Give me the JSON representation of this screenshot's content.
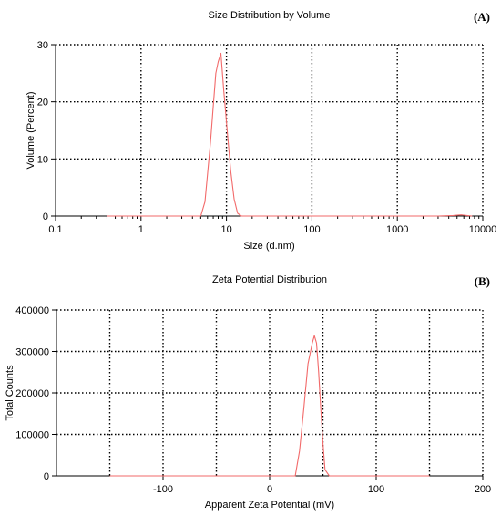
{
  "chart_data": [
    {
      "type": "line",
      "title": "Size Distribution by Volume",
      "panel_label": "(A)",
      "xlabel": "Size (d.nm)",
      "ylabel": "Volume (Percent)",
      "xscale": "log",
      "xlim": [
        0.1,
        10000
      ],
      "ylim": [
        0,
        30
      ],
      "xticks": [
        0.1,
        1,
        10,
        100,
        1000,
        10000
      ],
      "xtick_labels": [
        "0.1",
        "1",
        "10",
        "100",
        "1000",
        "10000"
      ],
      "yticks": [
        0,
        10,
        20,
        30
      ],
      "ytick_labels": [
        "0",
        "10",
        "20",
        "30"
      ],
      "grid": "dotted",
      "line_color": "#f26a6a",
      "series": [
        {
          "x": [
            0.4,
            1,
            2,
            4,
            5,
            5.6,
            6.5,
            7.5,
            8.0,
            8.6,
            9.3,
            10.2,
            11.2,
            12.3,
            13.5,
            15,
            20,
            50,
            200,
            1000,
            3000,
            4500,
            5600,
            6500,
            7500
          ],
          "values": [
            0,
            0,
            0,
            0,
            0,
            2.5,
            13,
            25,
            27,
            28.5,
            22,
            15,
            8,
            3,
            0.5,
            0,
            0,
            0,
            0,
            0,
            0,
            0.1,
            0.2,
            0.1,
            0
          ]
        }
      ]
    },
    {
      "type": "line",
      "title": "Zeta Potential Distribution",
      "panel_label": "(B)",
      "xlabel": "Apparent Zeta Potential (mV)",
      "ylabel": "Total Counts",
      "xlim": [
        -200,
        200
      ],
      "ylim": [
        0,
        400000
      ],
      "xticks": [
        -100,
        0,
        100,
        200
      ],
      "xtick_labels": [
        "-100",
        "0",
        "100",
        "200"
      ],
      "xgrid": [
        -150,
        -100,
        -50,
        0,
        50,
        100,
        150,
        200
      ],
      "yticks": [
        0,
        100000,
        200000,
        300000,
        400000
      ],
      "ytick_labels": [
        "0",
        "100000",
        "200000",
        "300000",
        "400000"
      ],
      "grid": "dotted",
      "line_color": "#f26a6a",
      "series": [
        {
          "x": [
            -150,
            -100,
            0,
            20,
            24,
            28,
            32,
            36,
            40,
            42,
            44,
            46,
            48,
            50,
            52,
            56,
            80,
            150
          ],
          "values": [
            0,
            0,
            0,
            0,
            0,
            60000,
            160000,
            270000,
            320000,
            338000,
            320000,
            250000,
            160000,
            80000,
            15000,
            0,
            0,
            0
          ]
        }
      ]
    }
  ]
}
